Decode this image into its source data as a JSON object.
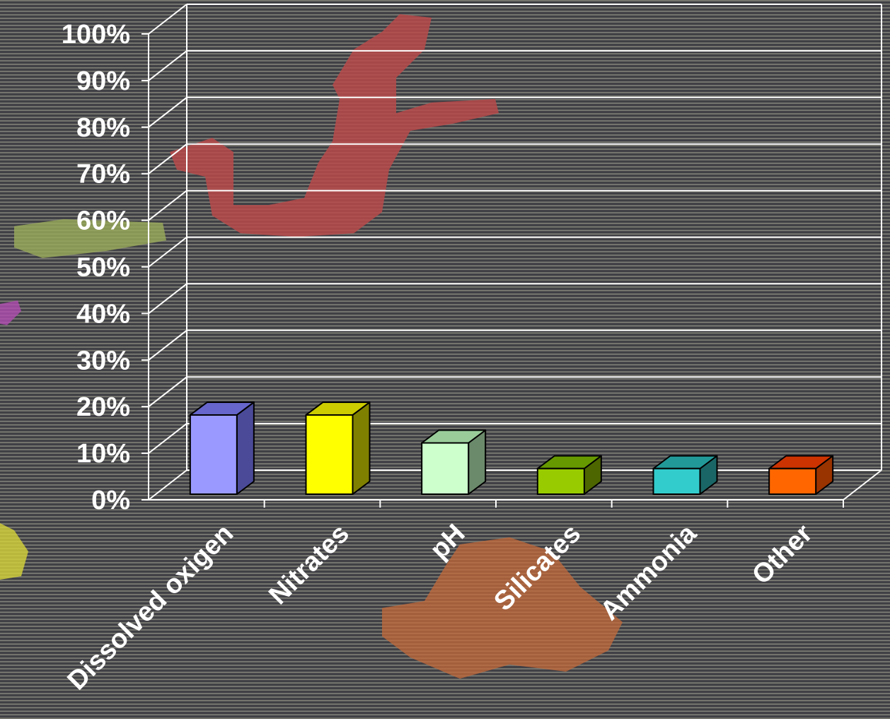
{
  "chart_data": {
    "type": "bar",
    "categories": [
      "Dissolved oxigen",
      "Nitrates",
      "pH",
      "Silicates",
      "Ammonia",
      "Other"
    ],
    "values": [
      17,
      17,
      11,
      5.5,
      5.5,
      5.5
    ],
    "ylim": [
      0,
      100
    ],
    "yticks": [
      "0%",
      "10%",
      "20%",
      "30%",
      "40%",
      "50%",
      "60%",
      "70%",
      "80%",
      "90%",
      "100%"
    ],
    "grid": true,
    "style_3d": true,
    "colors": [
      "#9999ff",
      "#ffff00",
      "#ccffcc",
      "#99cc00",
      "#33cccc",
      "#ff6600"
    ],
    "colors_top": [
      "#6666cc",
      "#cccc00",
      "#99cc99",
      "#669900",
      "#229999",
      "#cc3300"
    ],
    "colors_side": [
      "#4a4a99",
      "#808000",
      "#6b8a6b",
      "#4d6600",
      "#1a6666",
      "#993300"
    ]
  },
  "background": {
    "base": "#3e3e44",
    "stripe": "#76766f",
    "regions": [
      "#b94a4a",
      "#9aab5a",
      "#c46a3a",
      "#d7d43a",
      "#b04cb0"
    ]
  }
}
